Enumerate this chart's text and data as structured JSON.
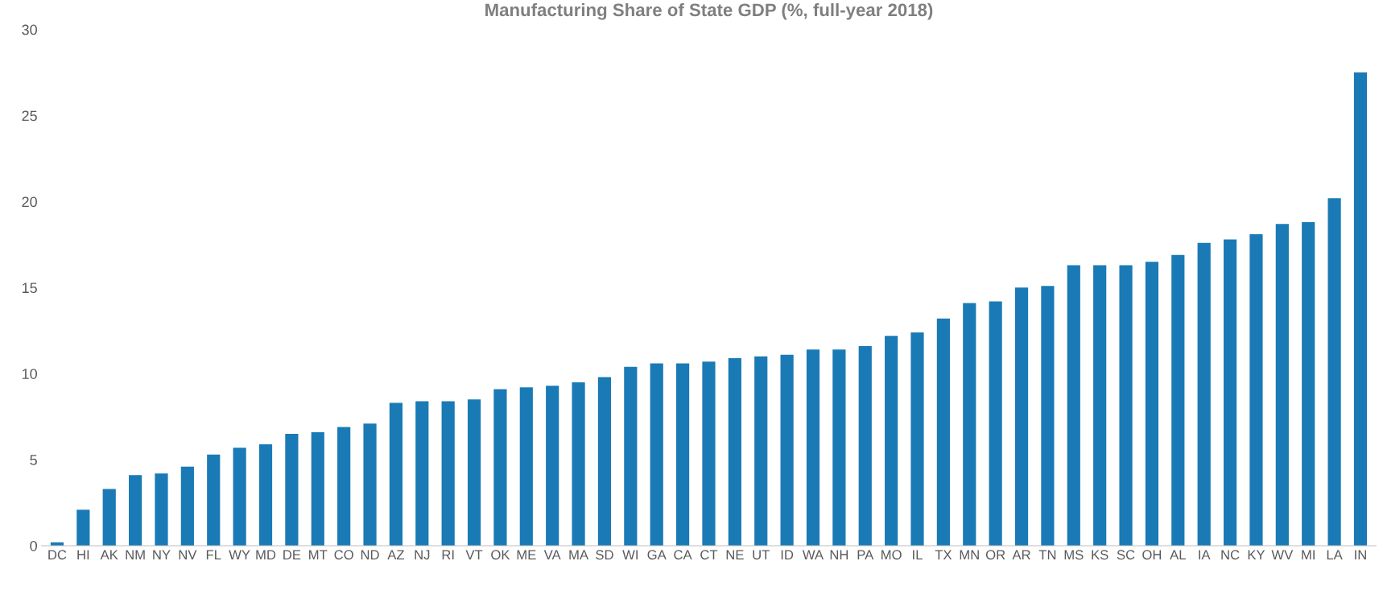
{
  "chart_data": {
    "type": "bar",
    "title": "Manufacturing Share of State GDP (%, full-year 2018)",
    "categories": [
      "DC",
      "HI",
      "AK",
      "NM",
      "NY",
      "NV",
      "FL",
      "WY",
      "MD",
      "DE",
      "MT",
      "CO",
      "ND",
      "AZ",
      "NJ",
      "RI",
      "VT",
      "OK",
      "ME",
      "VA",
      "MA",
      "SD",
      "WI",
      "GA",
      "CA",
      "CT",
      "NE",
      "UT",
      "ID",
      "WA",
      "NH",
      "PA",
      "MO",
      "IL",
      "TX",
      "MN",
      "OR",
      "AR",
      "TN",
      "MS",
      "KS",
      "SC",
      "OH",
      "AL",
      "IA",
      "NC",
      "KY",
      "WV",
      "MI",
      "LA",
      "IN"
    ],
    "values": [
      0.2,
      2.1,
      3.3,
      4.1,
      4.2,
      4.6,
      5.3,
      5.7,
      5.9,
      6.5,
      6.6,
      6.9,
      7.1,
      8.3,
      8.4,
      8.4,
      8.5,
      9.1,
      9.2,
      9.3,
      9.5,
      9.8,
      10.4,
      10.6,
      10.6,
      10.7,
      10.9,
      11.0,
      11.1,
      11.4,
      11.4,
      11.6,
      12.2,
      12.4,
      13.2,
      14.1,
      14.2,
      15.0,
      15.1,
      16.3,
      16.3,
      16.3,
      16.5,
      16.9,
      17.6,
      17.8,
      18.1,
      18.7,
      18.8,
      20.2,
      27.5
    ],
    "color": "#1a7ab5",
    "ylim": [
      0,
      30
    ],
    "yticks": [
      0,
      5,
      10,
      15,
      20,
      25,
      30
    ],
    "grid": false,
    "legend": false
  }
}
